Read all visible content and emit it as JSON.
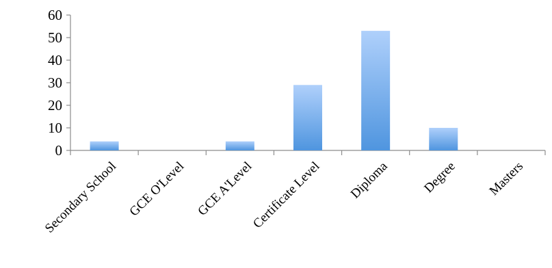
{
  "chart_data": {
    "type": "bar",
    "categories": [
      "Secondary School",
      "GCE O'Level",
      "GCE A'Level",
      "Certificate Level",
      "Diploma",
      "Degree",
      "Masters"
    ],
    "values": [
      4,
      0,
      4,
      29,
      53,
      10,
      0
    ],
    "ylim": [
      0,
      60
    ],
    "yticks": [
      0,
      10,
      20,
      30,
      40,
      50,
      60
    ],
    "grid": false,
    "legend": "none",
    "bar_gradient": [
      "#afd0fb",
      "#4f95df"
    ]
  }
}
